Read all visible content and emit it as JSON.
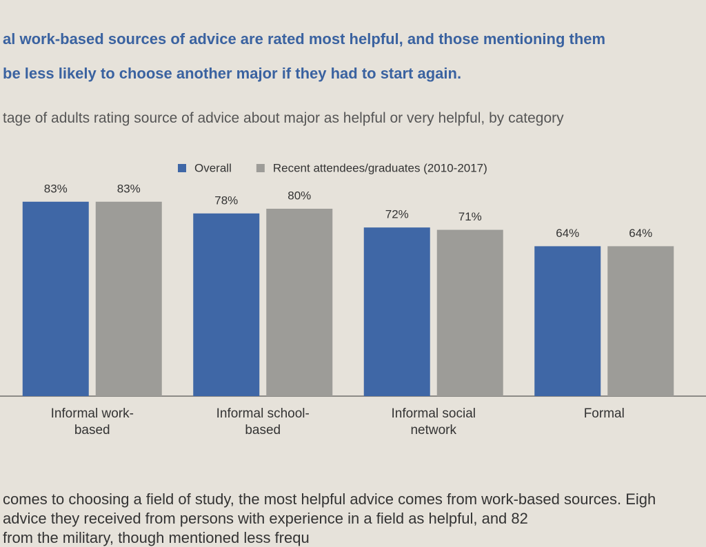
{
  "headline": [
    "al work-based sources of advice are rated most helpful, and those mentioning them",
    "be less likely to choose another major if they had to start again."
  ],
  "chart_data": {
    "type": "bar",
    "subtitle": "tage of adults rating source of advice about major as helpful or very helpful, by category",
    "categories": [
      "Informal work-based",
      "Informal school-based",
      "Informal social network",
      "Formal"
    ],
    "series": [
      {
        "name": "Overall",
        "color": "#3f67a6",
        "values": [
          83,
          78,
          72,
          64
        ],
        "value_labels": [
          "83%",
          "78%",
          "72%",
          "64%"
        ]
      },
      {
        "name": "Recent attendees/graduates (2010-2017)",
        "color": "#9d9c98",
        "values": [
          83,
          80,
          71,
          64
        ],
        "value_labels": [
          "83%",
          "80%",
          "71%",
          "64%"
        ]
      }
    ]
  },
  "body": [
    "comes to choosing a field of study, the most helpful advice comes from work-based sources. Eigh",
    "advice they received from persons with experience in a field as helpful, and 82",
    "from the military, though mentioned less frequ"
  ]
}
